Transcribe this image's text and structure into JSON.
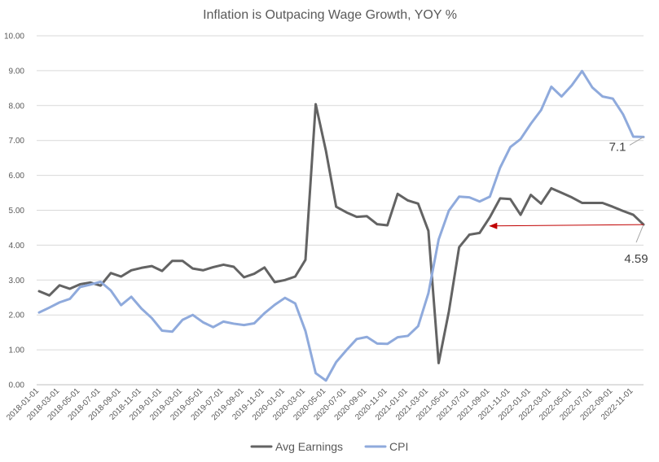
{
  "chart_data": {
    "type": "line",
    "title": "Inflation is Outpacing Wage Growth, YOY %",
    "xlabel": "",
    "ylabel": "",
    "ylim": [
      0,
      10
    ],
    "y_ticks": [
      "0.00",
      "1.00",
      "2.00",
      "3.00",
      "4.00",
      "5.00",
      "6.00",
      "7.00",
      "8.00",
      "9.00",
      "10.00"
    ],
    "grid": "horizontal",
    "legend_position": "bottom",
    "x": [
      "2018-01-01",
      "2018-02-01",
      "2018-03-01",
      "2018-04-01",
      "2018-05-01",
      "2018-06-01",
      "2018-07-01",
      "2018-08-01",
      "2018-09-01",
      "2018-10-01",
      "2018-11-01",
      "2018-12-01",
      "2019-01-01",
      "2019-02-01",
      "2019-03-01",
      "2019-04-01",
      "2019-05-01",
      "2019-06-01",
      "2019-07-01",
      "2019-08-01",
      "2019-09-01",
      "2019-10-01",
      "2019-11-01",
      "2019-12-01",
      "2020-01-01",
      "2020-02-01",
      "2020-03-01",
      "2020-04-01",
      "2020-05-01",
      "2020-06-01",
      "2020-07-01",
      "2020-08-01",
      "2020-09-01",
      "2020-10-01",
      "2020-11-01",
      "2020-12-01",
      "2021-01-01",
      "2021-02-01",
      "2021-03-01",
      "2021-04-01",
      "2021-05-01",
      "2021-06-01",
      "2021-07-01",
      "2021-08-01",
      "2021-09-01",
      "2021-10-01",
      "2021-11-01",
      "2021-12-01",
      "2022-01-01",
      "2022-02-01",
      "2022-03-01",
      "2022-04-01",
      "2022-05-01",
      "2022-06-01",
      "2022-07-01",
      "2022-08-01",
      "2022-09-01",
      "2022-10-01",
      "2022-11-01",
      "2022-12-01"
    ],
    "x_tick_labels": [
      "2018-01-01",
      "2018-03-01",
      "2018-05-01",
      "2018-07-01",
      "2018-09-01",
      "2018-11-01",
      "2019-01-01",
      "2019-03-01",
      "2019-05-01",
      "2019-07-01",
      "2019-09-01",
      "2019-11-01",
      "2020-01-01",
      "2020-03-01",
      "2020-05-01",
      "2020-07-01",
      "2020-09-01",
      "2020-11-01",
      "2021-01-01",
      "2021-03-01",
      "2021-05-01",
      "2021-07-01",
      "2021-09-01",
      "2021-11-01",
      "2022-01-01",
      "2022-03-01",
      "2022-05-01",
      "2022-07-01",
      "2022-09-01",
      "2022-11-01"
    ],
    "series": [
      {
        "name": "Avg Earnings",
        "color": "#636363",
        "values": [
          2.68,
          2.56,
          2.85,
          2.75,
          2.88,
          2.93,
          2.84,
          3.2,
          3.1,
          3.28,
          3.35,
          3.4,
          3.26,
          3.55,
          3.55,
          3.33,
          3.28,
          3.37,
          3.44,
          3.38,
          3.08,
          3.18,
          3.36,
          2.94,
          3.0,
          3.1,
          3.58,
          8.04,
          6.7,
          5.1,
          4.94,
          4.81,
          4.83,
          4.6,
          4.57,
          5.47,
          5.28,
          5.19,
          4.41,
          0.62,
          2.1,
          3.94,
          4.3,
          4.35,
          4.8,
          5.34,
          5.32,
          4.87,
          5.44,
          5.19,
          5.63,
          5.5,
          5.37,
          5.21,
          5.21,
          5.21,
          5.1,
          4.98,
          4.87,
          4.59
        ]
      },
      {
        "name": "CPI",
        "color": "#8faadc",
        "values": [
          2.07,
          2.21,
          2.36,
          2.46,
          2.8,
          2.87,
          2.95,
          2.7,
          2.28,
          2.52,
          2.18,
          1.91,
          1.55,
          1.52,
          1.86,
          2.0,
          1.79,
          1.65,
          1.81,
          1.75,
          1.71,
          1.76,
          2.05,
          2.29,
          2.49,
          2.33,
          1.54,
          0.33,
          0.12,
          0.65,
          0.99,
          1.31,
          1.37,
          1.18,
          1.17,
          1.36,
          1.4,
          1.68,
          2.62,
          4.16,
          4.99,
          5.39,
          5.37,
          5.25,
          5.39,
          6.22,
          6.81,
          7.04,
          7.48,
          7.87,
          8.54,
          8.26,
          8.58,
          8.99,
          8.52,
          8.26,
          8.2,
          7.75,
          7.11,
          7.1
        ]
      }
    ],
    "annotations": [
      {
        "text": "7.1",
        "series": "CPI",
        "x": "2022-12-01",
        "y": 7.1
      },
      {
        "text": "4.59",
        "series": "Avg Earnings",
        "x": "2022-12-01",
        "y": 4.59
      },
      {
        "type": "arrow",
        "color": "#c00000",
        "from": {
          "x": "2022-12-01",
          "y": 4.59
        },
        "to": {
          "x": "2021-09-01",
          "y": 4.55
        }
      }
    ]
  }
}
